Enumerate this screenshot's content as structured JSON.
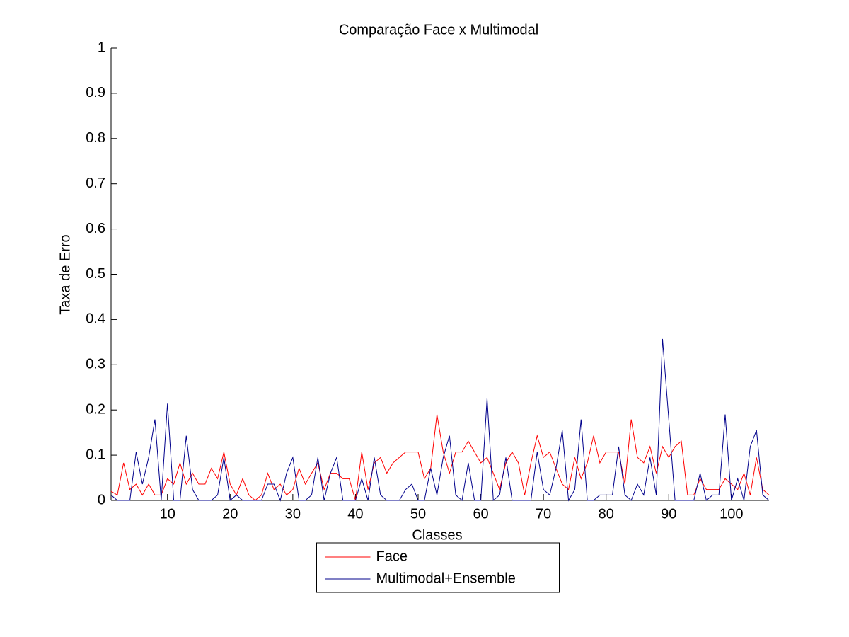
{
  "chart_data": {
    "type": "line",
    "title": "Comparação Face x Multimodal",
    "xlabel": "Classes",
    "ylabel": "Taxa de Erro",
    "x": [
      1,
      2,
      3,
      4,
      5,
      6,
      7,
      8,
      9,
      10,
      11,
      12,
      13,
      14,
      15,
      16,
      17,
      18,
      19,
      20,
      21,
      22,
      23,
      24,
      25,
      26,
      27,
      28,
      29,
      30,
      31,
      32,
      33,
      34,
      35,
      36,
      37,
      38,
      39,
      40,
      41,
      42,
      43,
      44,
      45,
      46,
      47,
      48,
      49,
      50,
      51,
      52,
      53,
      54,
      55,
      56,
      57,
      58,
      59,
      60,
      61,
      62,
      63,
      64,
      65,
      66,
      67,
      68,
      69,
      70,
      71,
      72,
      73,
      74,
      75,
      76,
      77,
      78,
      79,
      80,
      81,
      82,
      83,
      84,
      85,
      86,
      87,
      88,
      89,
      90,
      91,
      92,
      93,
      94,
      95,
      96,
      97,
      98,
      99,
      100,
      101,
      102,
      103,
      104,
      105,
      106
    ],
    "series": [
      {
        "name": "Face",
        "color": "#ff0000",
        "values": [
          0.02,
          0.012,
          0.083,
          0.024,
          0.036,
          0.012,
          0.036,
          0.012,
          0.012,
          0.048,
          0.036,
          0.083,
          0.036,
          0.06,
          0.036,
          0.036,
          0.071,
          0.048,
          0.107,
          0.036,
          0.012,
          0.048,
          0.012,
          0,
          0.012,
          0.06,
          0.024,
          0.036,
          0.012,
          0.024,
          0.071,
          0.036,
          0.06,
          0.083,
          0.024,
          0.06,
          0.06,
          0.048,
          0.048,
          0,
          0.107,
          0.024,
          0.083,
          0.095,
          0.06,
          0.083,
          0.095,
          0.107,
          0.107,
          0.107,
          0.048,
          0.071,
          0.19,
          0.107,
          0.06,
          0.107,
          0.107,
          0.131,
          0.107,
          0.083,
          0.095,
          0.06,
          0.024,
          0.083,
          0.107,
          0.083,
          0.012,
          0.083,
          0.143,
          0.095,
          0.107,
          0.071,
          0.036,
          0.024,
          0.095,
          0.048,
          0.083,
          0.143,
          0.083,
          0.107,
          0.107,
          0.107,
          0.036,
          0.179,
          0.095,
          0.083,
          0.119,
          0.06,
          0.119,
          0.095,
          0.119,
          0.131,
          0.012,
          0.012,
          0.048,
          0.024,
          0.024,
          0.024,
          0.048,
          0.036,
          0.024,
          0.06,
          0.012,
          0.095,
          0.024,
          0.012
        ]
      },
      {
        "name": "Multimodal+Ensemble",
        "color": "#00008b",
        "values": [
          0.012,
          0,
          0,
          0,
          0.107,
          0.036,
          0.095,
          0.179,
          0,
          0.214,
          0,
          0,
          0.143,
          0.024,
          0,
          0,
          0,
          0.012,
          0.095,
          0,
          0.012,
          0,
          0,
          0,
          0,
          0.036,
          0.036,
          0,
          0.06,
          0.095,
          0,
          0,
          0.012,
          0.095,
          0,
          0.06,
          0.095,
          0,
          0,
          0,
          0.048,
          0,
          0.095,
          0.012,
          0,
          0,
          0,
          0.024,
          0.036,
          0,
          0,
          0.071,
          0.012,
          0.095,
          0.143,
          0.012,
          0,
          0.083,
          0,
          0,
          0.226,
          0,
          0.012,
          0.095,
          0,
          0,
          0,
          0,
          0.107,
          0.024,
          0.012,
          0.071,
          0.155,
          0,
          0.024,
          0.179,
          0,
          0,
          0.012,
          0.012,
          0.012,
          0.119,
          0.012,
          0,
          0.036,
          0.012,
          0.095,
          0.012,
          0.357,
          0.179,
          0,
          0,
          0,
          0,
          0.06,
          0,
          0.012,
          0.012,
          0.19,
          0,
          0.048,
          0,
          0.119,
          0.155,
          0.012,
          0
        ]
      }
    ],
    "xlim": [
      1,
      106
    ],
    "xticks": [
      10,
      20,
      30,
      40,
      50,
      60,
      70,
      80,
      90,
      100
    ],
    "ylim": [
      0,
      1
    ],
    "yticks": [
      0,
      0.1,
      0.2,
      0.3,
      0.4,
      0.5,
      0.6,
      0.7,
      0.8,
      0.9,
      1
    ],
    "grid": false,
    "legend": "south-outside"
  }
}
